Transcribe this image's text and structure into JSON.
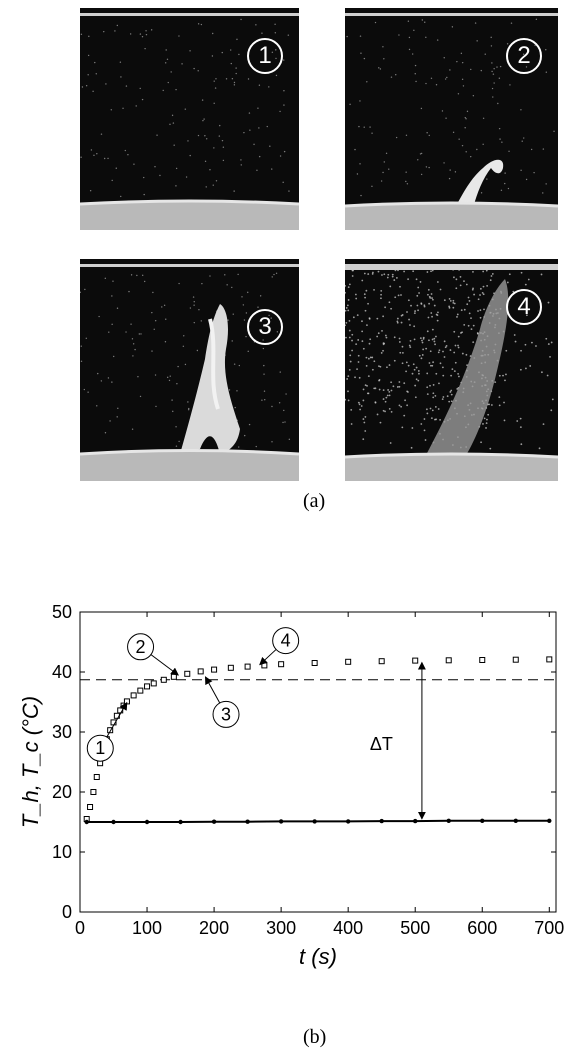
{
  "figure": {
    "caption_a": "(a)",
    "caption_b": "(b)",
    "panels": [
      {
        "label": "1"
      },
      {
        "label": "2"
      },
      {
        "label": "3"
      },
      {
        "label": "4"
      }
    ]
  },
  "chart_data": {
    "type": "scatter",
    "title": "",
    "xlabel": "t (s)",
    "ylabel": "T_h, T_c (°C)",
    "xlim": [
      0,
      710
    ],
    "ylim": [
      0,
      50
    ],
    "xticks": [
      0,
      100,
      200,
      300,
      400,
      500,
      600,
      700
    ],
    "yticks": [
      0,
      10,
      20,
      30,
      40,
      50
    ],
    "grid": false,
    "series": [
      {
        "marker": "square",
        "color": "#000000",
        "x": [
          10,
          15,
          20,
          25,
          30,
          35,
          40,
          45,
          50,
          55,
          60,
          65,
          70,
          80,
          90,
          100,
          110,
          125,
          140,
          160,
          180,
          200,
          225,
          250,
          275,
          300,
          350,
          400,
          450,
          500,
          550,
          600,
          650,
          700
        ],
        "y": [
          15.5,
          17.5,
          20.0,
          22.5,
          24.8,
          27.0,
          28.8,
          30.3,
          31.6,
          32.7,
          33.6,
          34.4,
          35.1,
          36.1,
          36.9,
          37.6,
          38.1,
          38.7,
          39.2,
          39.7,
          40.1,
          40.4,
          40.7,
          40.9,
          41.1,
          41.3,
          41.5,
          41.7,
          41.8,
          41.9,
          41.95,
          42.0,
          42.05,
          42.1
        ]
      },
      {
        "marker": "dot",
        "color": "#000000",
        "x": [
          10,
          50,
          100,
          150,
          200,
          250,
          300,
          350,
          400,
          450,
          500,
          550,
          600,
          650,
          700
        ],
        "y": [
          15.0,
          15.0,
          15.0,
          15.0,
          15.05,
          15.05,
          15.1,
          15.1,
          15.1,
          15.15,
          15.15,
          15.2,
          15.2,
          15.2,
          15.2
        ]
      }
    ],
    "reference_line": {
      "y": 38.7,
      "style": "dashed"
    },
    "delta_annotation": {
      "label": "ΔT",
      "x": 510,
      "y_from": 15.2,
      "y_to": 41.9
    },
    "point_markers": [
      {
        "label": "1",
        "x": 72,
        "y": 35.3
      },
      {
        "label": "2",
        "x": 150,
        "y": 39.2
      },
      {
        "label": "3",
        "x": 185,
        "y": 39.6
      },
      {
        "label": "4",
        "x": 265,
        "y": 40.9
      }
    ]
  }
}
